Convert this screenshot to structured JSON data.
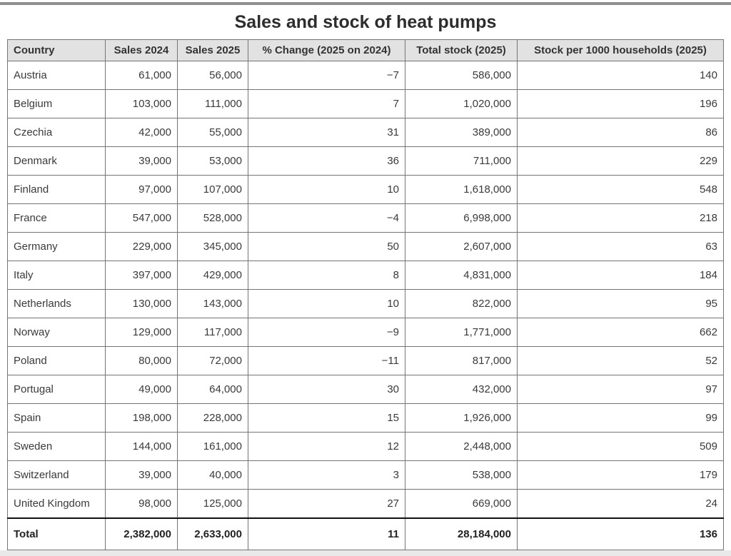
{
  "page": {
    "title": "Sales and stock of heat pumps"
  },
  "table": {
    "columns": [
      "Country",
      "Sales 2024",
      "Sales 2025",
      "% Change (2025 on 2024)",
      "Total stock (2025)",
      "Stock per 1000 households (2025)"
    ],
    "rows": [
      [
        "Austria",
        "61,000",
        "56,000",
        "−7",
        "586,000",
        "140"
      ],
      [
        "Belgium",
        "103,000",
        "111,000",
        "7",
        "1,020,000",
        "196"
      ],
      [
        "Czechia",
        "42,000",
        "55,000",
        "31",
        "389,000",
        "86"
      ],
      [
        "Denmark",
        "39,000",
        "53,000",
        "36",
        "711,000",
        "229"
      ],
      [
        "Finland",
        "97,000",
        "107,000",
        "10",
        "1,618,000",
        "548"
      ],
      [
        "France",
        "547,000",
        "528,000",
        "−4",
        "6,998,000",
        "218"
      ],
      [
        "Germany",
        "229,000",
        "345,000",
        "50",
        "2,607,000",
        "63"
      ],
      [
        "Italy",
        "397,000",
        "429,000",
        "8",
        "4,831,000",
        "184"
      ],
      [
        "Netherlands",
        "130,000",
        "143,000",
        "10",
        "822,000",
        "95"
      ],
      [
        "Norway",
        "129,000",
        "117,000",
        "−9",
        "1,771,000",
        "662"
      ],
      [
        "Poland",
        "80,000",
        "72,000",
        "−11",
        "817,000",
        "52"
      ],
      [
        "Portugal",
        "49,000",
        "64,000",
        "30",
        "432,000",
        "97"
      ],
      [
        "Spain",
        "198,000",
        "228,000",
        "15",
        "1,926,000",
        "99"
      ],
      [
        "Sweden",
        "144,000",
        "161,000",
        "12",
        "2,448,000",
        "509"
      ],
      [
        "Switzerland",
        "39,000",
        "40,000",
        "3",
        "538,000",
        "179"
      ],
      [
        "United Kingdom",
        "98,000",
        "125,000",
        "27",
        "669,000",
        "24"
      ]
    ],
    "total_row": [
      "Total",
      "2,382,000",
      "2,633,000",
      "11",
      "28,184,000",
      "136"
    ]
  },
  "colors": {
    "header_bg": "#e2e2e2",
    "cell_border": "#757575",
    "total_rule": "#111111",
    "top_rule": "#8f8f8f",
    "text": "#3a3a3a",
    "page_bg": "#ffffff",
    "outer_bg": "#e9e9e9"
  },
  "chart_data": {
    "type": "table",
    "title": "Sales and stock of heat pumps",
    "columns": [
      "Country",
      "Sales 2024",
      "Sales 2025",
      "% Change (2025 on 2024)",
      "Total stock (2025)",
      "Stock per 1000 households (2025)"
    ],
    "categories": [
      "Austria",
      "Belgium",
      "Czechia",
      "Denmark",
      "Finland",
      "France",
      "Germany",
      "Italy",
      "Netherlands",
      "Norway",
      "Poland",
      "Portugal",
      "Spain",
      "Sweden",
      "Switzerland",
      "United Kingdom"
    ],
    "series": [
      {
        "name": "Sales 2024",
        "values": [
          61000,
          103000,
          42000,
          39000,
          97000,
          547000,
          229000,
          397000,
          130000,
          129000,
          80000,
          49000,
          198000,
          144000,
          39000,
          98000
        ],
        "total": 2382000
      },
      {
        "name": "Sales 2025",
        "values": [
          56000,
          111000,
          55000,
          53000,
          107000,
          528000,
          345000,
          429000,
          143000,
          117000,
          72000,
          64000,
          228000,
          161000,
          40000,
          125000
        ],
        "total": 2633000
      },
      {
        "name": "% Change (2025 on 2024)",
        "values": [
          -7,
          7,
          31,
          36,
          10,
          -4,
          50,
          8,
          10,
          -9,
          -11,
          30,
          15,
          12,
          3,
          27
        ],
        "total": 11
      },
      {
        "name": "Total stock (2025)",
        "values": [
          586000,
          1020000,
          389000,
          711000,
          1618000,
          6998000,
          2607000,
          4831000,
          822000,
          1771000,
          817000,
          432000,
          1926000,
          2448000,
          538000,
          669000
        ],
        "total": 28184000
      },
      {
        "name": "Stock per 1000 households (2025)",
        "values": [
          140,
          196,
          86,
          229,
          548,
          218,
          63,
          184,
          95,
          662,
          52,
          97,
          99,
          509,
          179,
          24
        ],
        "total": 136
      }
    ]
  }
}
